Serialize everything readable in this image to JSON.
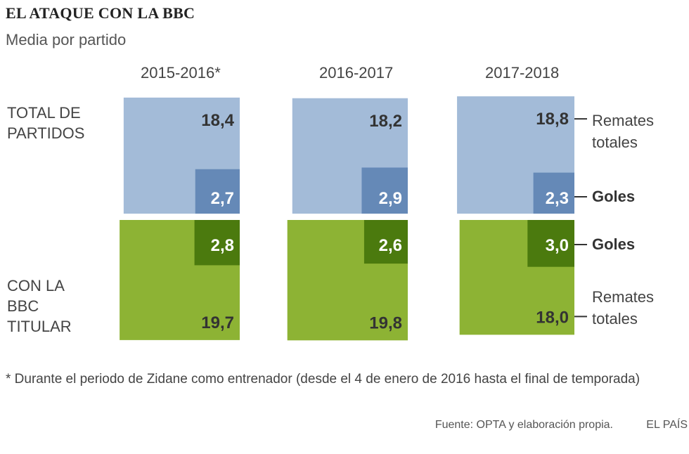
{
  "header": {
    "title": "EL ATAQUE CON LA BBC",
    "subtitle": "Media por partido"
  },
  "row_labels": {
    "top_line1": "TOTAL DE",
    "top_line2": "PARTIDOS",
    "bottom_line1": "CON LA",
    "bottom_line2": "BBC",
    "bottom_line3": "TITULAR"
  },
  "annotations": {
    "top_shots_line1": "Remates",
    "top_shots_line2": "totales",
    "top_goals": "Goles",
    "bottom_goals": "Goles",
    "bottom_shots_line1": "Remates",
    "bottom_shots_line2": "totales"
  },
  "footnote": "* Durante el periodo de Zidane como entrenador (desde el 4 de enero de 2016 hasta el final de temporada)",
  "source": "Fuente: OPTA y elaboración propia.",
  "brand": "EL PAÍS",
  "colors": {
    "total_shots": "#a3bbd8",
    "total_goals": "#6589b7",
    "bbc_shots": "#8db334",
    "bbc_goals": "#4b7a0e",
    "label_dark": "#333333",
    "label_light": "#ffffff",
    "leader": "#333333"
  },
  "chart_data": {
    "type": "area",
    "periods": [
      "2015-2016*",
      "2016-2017",
      "2017-2018"
    ],
    "groups": [
      "TOTAL DE PARTIDOS",
      "CON LA BBC TITULAR"
    ],
    "series": [
      {
        "name": "Remates totales",
        "group": "TOTAL DE PARTIDOS",
        "values": [
          18.4,
          18.2,
          18.8
        ],
        "labels": [
          "18,4",
          "18,2",
          "18,8"
        ]
      },
      {
        "name": "Goles",
        "group": "TOTAL DE PARTIDOS",
        "values": [
          2.7,
          2.9,
          2.3
        ],
        "labels": [
          "2,7",
          "2,9",
          "2,3"
        ]
      },
      {
        "name": "Goles",
        "group": "CON LA BBC TITULAR",
        "values": [
          2.8,
          2.6,
          3.0
        ],
        "labels": [
          "2,8",
          "2,6",
          "3,0"
        ]
      },
      {
        "name": "Remates totales",
        "group": "CON LA BBC TITULAR",
        "values": [
          19.7,
          19.8,
          18.0
        ],
        "labels": [
          "19,7",
          "19,8",
          "18,0"
        ]
      }
    ]
  }
}
